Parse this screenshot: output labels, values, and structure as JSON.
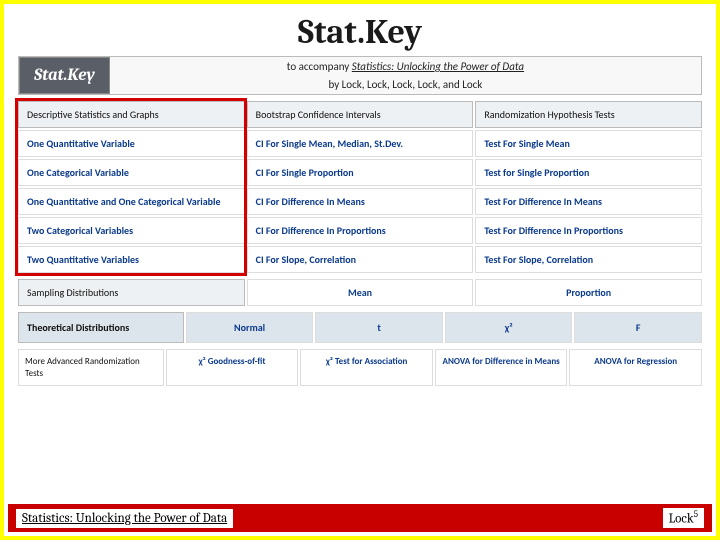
{
  "title": "Stat.Key",
  "logo": {
    "brand": "Stat.Key",
    "line1_prefix": "to accompany ",
    "line1_title": "Statistics: Unlocking the Power of Data",
    "line2": "by Lock, Lock, Lock, Lock, and Lock"
  },
  "columns": {
    "headers": [
      "Descriptive Statistics and Graphs",
      "Bootstrap Confidence Intervals",
      "Randomization Hypothesis Tests"
    ],
    "rows": [
      [
        "One Quantitative Variable",
        "CI For Single Mean, Median, St.Dev.",
        "Test For Single Mean"
      ],
      [
        "One Categorical Variable",
        "CI For Single Proportion",
        "Test for Single Proportion"
      ],
      [
        "One Quantitative and One Categorical Variable",
        "CI For Difference In Means",
        "Test For Difference In Means"
      ],
      [
        "Two Categorical Variables",
        "CI For Difference In Proportions",
        "Test For Difference In Proportions"
      ],
      [
        "Two Quantitative Variables",
        "CI For Slope, Correlation",
        "Test For Slope, Correlation"
      ]
    ]
  },
  "sampling": {
    "label": "Sampling Distributions",
    "items": [
      "Mean",
      "Proportion"
    ]
  },
  "theoretical": {
    "label": "Theoretical Distributions",
    "items": [
      "Normal",
      "t",
      "χ²",
      "F"
    ]
  },
  "advanced": {
    "label": "More Advanced Randomization Tests",
    "items": [
      "χ² Goodness-of-fit",
      "χ² Test for Association",
      "ANOVA for Difference in Means",
      "ANOVA for Regression"
    ]
  },
  "footer": {
    "left": "Statistics: Unlocking the Power of Data",
    "right_base": "Lock",
    "right_sup": "5"
  }
}
